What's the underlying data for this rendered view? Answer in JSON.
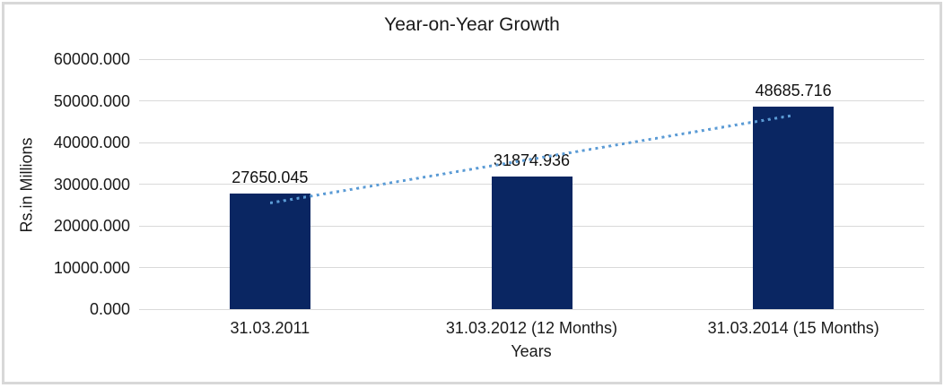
{
  "chart_data": {
    "type": "bar",
    "title": "Year-on-Year Growth",
    "xlabel": "Years",
    "ylabel": "Rs.in Millions",
    "categories": [
      "31.03.2011",
      "31.03.2012 (12 Months)",
      "31.03.2014 (15 Months)"
    ],
    "values": [
      27650.045,
      31874.936,
      48685.716
    ],
    "data_labels": [
      "27650.045",
      "31874.936",
      "48685.716"
    ],
    "yticks": [
      "0.000",
      "10000.000",
      "20000.000",
      "30000.000",
      "40000.000",
      "50000.000",
      "60000.000"
    ],
    "ylim": [
      0,
      60000
    ],
    "grid": true,
    "legend": "none",
    "bar_color": "#0a2662",
    "gridline_color": "#d9d9d9",
    "text_color": "#1a1a1a",
    "trendline": {
      "type": "linear",
      "style": "dotted",
      "color": "#5b9bd5"
    }
  }
}
